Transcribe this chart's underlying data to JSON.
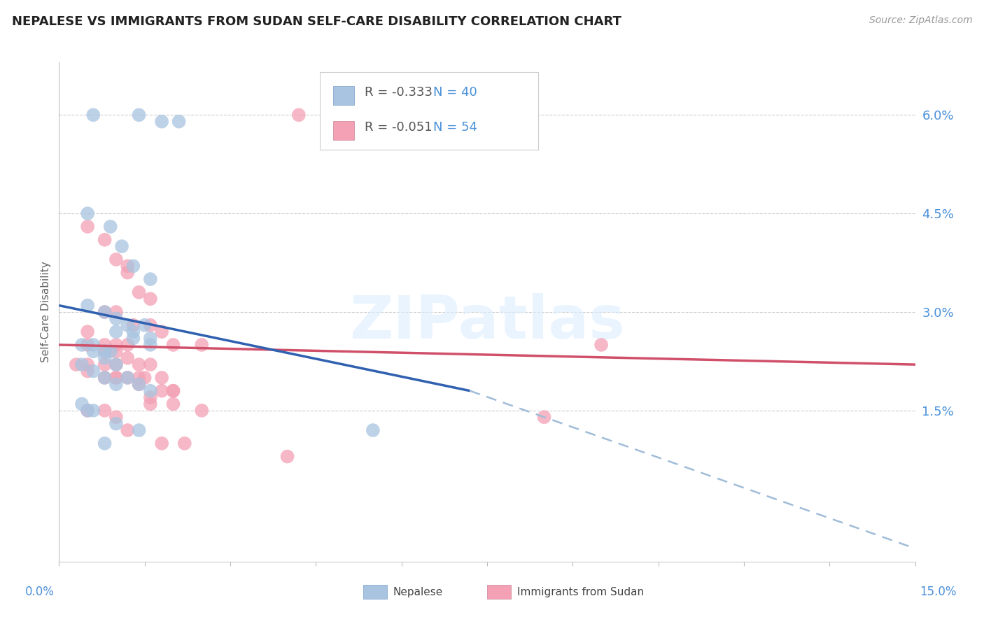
{
  "title": "NEPALESE VS IMMIGRANTS FROM SUDAN SELF-CARE DISABILITY CORRELATION CHART",
  "source": "Source: ZipAtlas.com",
  "ylabel": "Self-Care Disability",
  "ytick_vals": [
    0.0,
    0.015,
    0.03,
    0.045,
    0.06
  ],
  "ytick_labels": [
    "",
    "1.5%",
    "3.0%",
    "4.5%",
    "6.0%"
  ],
  "xlim": [
    0.0,
    0.15
  ],
  "ylim": [
    -0.008,
    0.068
  ],
  "legend_r1": "R = -0.333",
  "legend_n1": "N = 40",
  "legend_r2": "R = -0.051",
  "legend_n2": "N = 54",
  "legend_label1": "Nepalese",
  "legend_label2": "Immigrants from Sudan",
  "color_blue": "#a8c4e0",
  "color_pink": "#f4a0b5",
  "color_blue_line": "#3060b0",
  "color_pink_line": "#d0506a",
  "color_blue_dashed": "#a0bcd8",
  "watermark": "ZIPatlas",
  "nepalese_x": [
    0.006,
    0.014,
    0.018,
    0.021,
    0.005,
    0.009,
    0.011,
    0.013,
    0.016,
    0.005,
    0.008,
    0.01,
    0.012,
    0.013,
    0.015,
    0.016,
    0.01,
    0.013,
    0.016,
    0.004,
    0.006,
    0.008,
    0.009,
    0.006,
    0.008,
    0.01,
    0.004,
    0.006,
    0.008,
    0.01,
    0.012,
    0.014,
    0.016,
    0.004,
    0.006,
    0.01,
    0.014,
    0.005,
    0.008,
    0.055
  ],
  "nepalese_y": [
    0.06,
    0.06,
    0.059,
    0.059,
    0.045,
    0.043,
    0.04,
    0.037,
    0.035,
    0.031,
    0.03,
    0.029,
    0.028,
    0.027,
    0.028,
    0.026,
    0.027,
    0.026,
    0.025,
    0.025,
    0.025,
    0.024,
    0.024,
    0.024,
    0.023,
    0.022,
    0.022,
    0.021,
    0.02,
    0.019,
    0.02,
    0.019,
    0.018,
    0.016,
    0.015,
    0.013,
    0.012,
    0.015,
    0.01,
    0.012
  ],
  "sudan_x": [
    0.042,
    0.005,
    0.008,
    0.01,
    0.012,
    0.012,
    0.014,
    0.016,
    0.008,
    0.01,
    0.013,
    0.016,
    0.018,
    0.005,
    0.008,
    0.01,
    0.012,
    0.005,
    0.008,
    0.01,
    0.012,
    0.014,
    0.016,
    0.005,
    0.008,
    0.01,
    0.003,
    0.005,
    0.008,
    0.01,
    0.012,
    0.02,
    0.014,
    0.018,
    0.014,
    0.018,
    0.02,
    0.016,
    0.02,
    0.025,
    0.095,
    0.015,
    0.02,
    0.025,
    0.016,
    0.005,
    0.008,
    0.01,
    0.01,
    0.018,
    0.022,
    0.012,
    0.04,
    0.085
  ],
  "sudan_y": [
    0.06,
    0.043,
    0.041,
    0.038,
    0.037,
    0.036,
    0.033,
    0.032,
    0.03,
    0.03,
    0.028,
    0.028,
    0.027,
    0.027,
    0.025,
    0.025,
    0.025,
    0.025,
    0.024,
    0.024,
    0.023,
    0.022,
    0.022,
    0.022,
    0.022,
    0.022,
    0.022,
    0.021,
    0.02,
    0.02,
    0.02,
    0.025,
    0.02,
    0.02,
    0.019,
    0.018,
    0.018,
    0.017,
    0.016,
    0.025,
    0.025,
    0.02,
    0.018,
    0.015,
    0.016,
    0.015,
    0.015,
    0.014,
    0.02,
    0.01,
    0.01,
    0.012,
    0.008,
    0.014
  ],
  "blue_line_x0": 0.0,
  "blue_line_y0": 0.031,
  "blue_line_x_solid_end": 0.072,
  "blue_line_y_solid_end": 0.018,
  "blue_line_x1": 0.15,
  "blue_line_y1": -0.006,
  "pink_line_x0": 0.0,
  "pink_line_y0": 0.025,
  "pink_line_x1": 0.15,
  "pink_line_y1": 0.022
}
